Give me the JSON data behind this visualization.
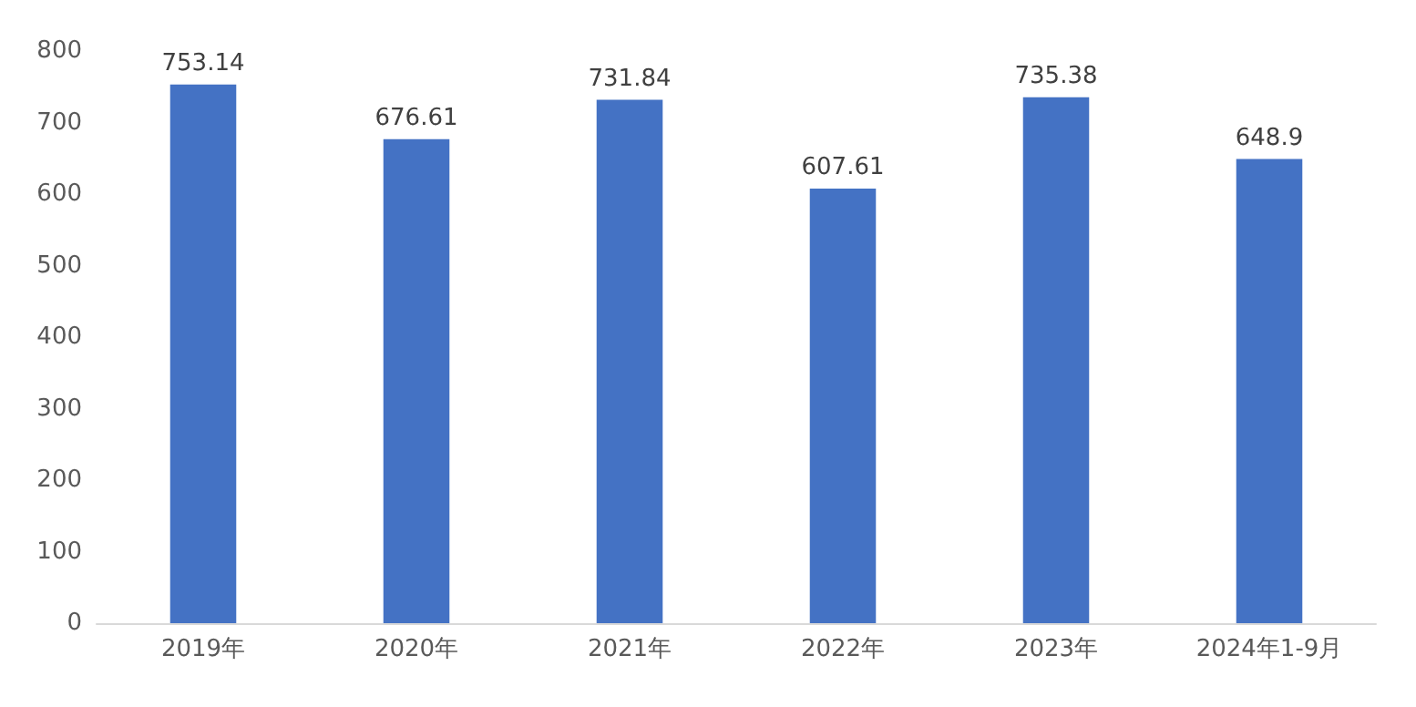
{
  "chart_data": {
    "type": "bar",
    "categories": [
      "2019年",
      "2020年",
      "2021年",
      "2022年",
      "2023年",
      "2024年1-9月"
    ],
    "values": [
      753.14,
      676.61,
      731.84,
      607.61,
      735.38,
      648.9
    ],
    "color": "#4472c4",
    "ylim": [
      0,
      800
    ],
    "yticks": [
      0,
      100,
      200,
      300,
      400,
      500,
      600,
      700,
      800
    ],
    "grid": false,
    "data_labels": true
  }
}
